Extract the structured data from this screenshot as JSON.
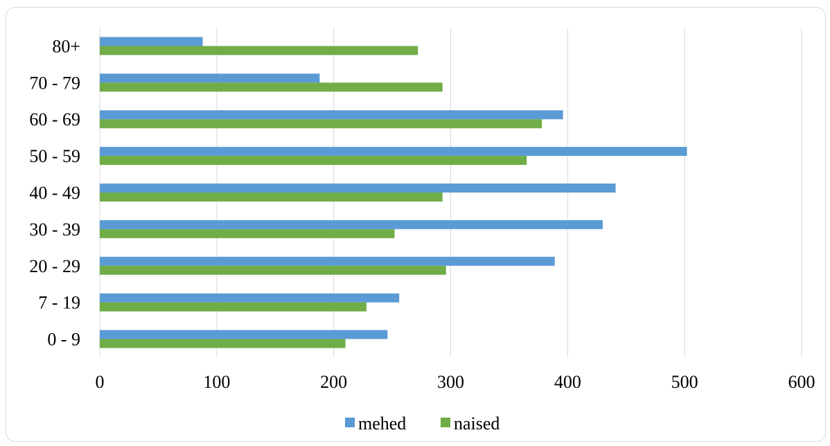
{
  "chart_data": {
    "type": "bar",
    "orientation": "horizontal",
    "title": "",
    "xlabel": "",
    "ylabel": "",
    "categories": [
      "0 - 9",
      "7 - 19",
      "20 - 29",
      "30 - 39",
      "40 - 49",
      "50 - 59",
      "60 - 69",
      "70 - 79",
      "80+"
    ],
    "series": [
      {
        "name": "mehed",
        "color": "#5b9bd5",
        "values": [
          246,
          256,
          389,
          430,
          441,
          502,
          396,
          188,
          88
        ]
      },
      {
        "name": "naised",
        "color": "#70ad47",
        "values": [
          210,
          228,
          296,
          252,
          293,
          365,
          378,
          293,
          272
        ]
      }
    ],
    "xlim": [
      0,
      600
    ],
    "x_ticks": [
      "0",
      "100",
      "200",
      "300",
      "400",
      "500",
      "600"
    ],
    "grid": true,
    "legend_position": "bottom"
  }
}
